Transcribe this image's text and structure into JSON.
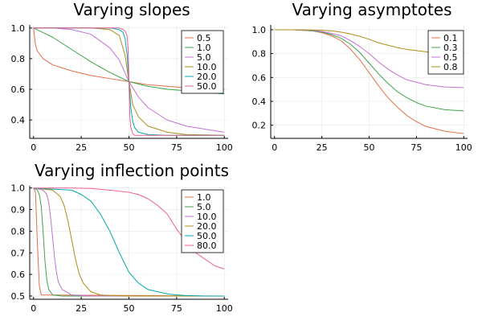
{
  "chart_data": [
    {
      "type": "line",
      "title": "Varying slopes",
      "xlabel": "",
      "ylabel": "",
      "xlim": [
        -2,
        102
      ],
      "ylim": [
        0.28,
        1.02
      ],
      "xticks": [
        0,
        25,
        50,
        75,
        100
      ],
      "yticks": [
        0.4,
        0.6,
        0.8,
        1.0
      ],
      "xtick_labels": [
        "0",
        "25",
        "50",
        "75",
        "100"
      ],
      "ytick_labels": [
        "0.4",
        "0.6",
        "0.8",
        "1.0"
      ],
      "grid": true,
      "legend_position": "top-right",
      "series": [
        {
          "name": "0.5",
          "color": "#e26f46",
          "x": [
            0,
            1,
            2,
            5,
            10,
            20,
            30,
            40,
            50,
            60,
            70,
            80,
            90,
            100
          ],
          "y": [
            1.0,
            0.89,
            0.85,
            0.8,
            0.76,
            0.72,
            0.69,
            0.67,
            0.65,
            0.63,
            0.62,
            0.61,
            0.6,
            0.6
          ]
        },
        {
          "name": "1.0",
          "color": "#3da44d",
          "x": [
            0,
            5,
            10,
            20,
            30,
            40,
            50,
            60,
            70,
            80,
            90,
            95,
            100
          ],
          "y": [
            1.0,
            0.97,
            0.94,
            0.86,
            0.78,
            0.71,
            0.65,
            0.62,
            0.6,
            0.59,
            0.58,
            0.575,
            0.57
          ]
        },
        {
          "name": "5.0",
          "color": "#c271d2",
          "x": [
            0,
            10,
            20,
            30,
            40,
            45,
            50,
            55,
            60,
            70,
            80,
            90,
            100
          ],
          "y": [
            1.0,
            1.0,
            0.99,
            0.96,
            0.87,
            0.79,
            0.65,
            0.55,
            0.48,
            0.4,
            0.36,
            0.34,
            0.32
          ]
        },
        {
          "name": "10.0",
          "color": "#ac8d18",
          "x": [
            0,
            30,
            40,
            45,
            48,
            50,
            52,
            55,
            60,
            70,
            80,
            100
          ],
          "y": [
            1.0,
            1.0,
            0.99,
            0.95,
            0.82,
            0.65,
            0.5,
            0.42,
            0.36,
            0.32,
            0.305,
            0.3
          ]
        },
        {
          "name": "20.0",
          "color": "#00a9ad",
          "x": [
            0,
            40,
            45,
            47,
            48,
            49,
            50,
            51,
            52,
            53,
            55,
            60,
            70,
            100
          ],
          "y": [
            1.0,
            1.0,
            0.99,
            0.97,
            0.93,
            0.83,
            0.65,
            0.48,
            0.39,
            0.35,
            0.32,
            0.305,
            0.3,
            0.3
          ]
        },
        {
          "name": "50.0",
          "color": "#ed5e93",
          "x": [
            0,
            45,
            47,
            48,
            49,
            49.5,
            50,
            50.5,
            51,
            52,
            53,
            100
          ],
          "y": [
            1.0,
            1.0,
            0.99,
            0.98,
            0.95,
            0.88,
            0.65,
            0.42,
            0.35,
            0.31,
            0.3,
            0.3
          ]
        }
      ]
    },
    {
      "type": "line",
      "title": "Varying asymptotes",
      "xlabel": "",
      "ylabel": "",
      "xlim": [
        -2,
        102
      ],
      "ylim": [
        0.09,
        1.04
      ],
      "xticks": [
        0,
        25,
        50,
        75,
        100
      ],
      "yticks": [
        0.2,
        0.4,
        0.6,
        0.8,
        1.0
      ],
      "xtick_labels": [
        "0",
        "25",
        "50",
        "75",
        "100"
      ],
      "ytick_labels": [
        "0.2",
        "0.4",
        "0.6",
        "0.8",
        "1.0"
      ],
      "grid": true,
      "legend_position": "top-right",
      "series": [
        {
          "name": "0.1",
          "color": "#e26f46",
          "x": [
            0,
            10,
            20,
            25,
            30,
            35,
            40,
            45,
            50,
            55,
            60,
            65,
            70,
            75,
            80,
            90,
            100
          ],
          "y": [
            1.0,
            1.0,
            0.99,
            0.975,
            0.95,
            0.91,
            0.84,
            0.75,
            0.64,
            0.53,
            0.43,
            0.35,
            0.28,
            0.23,
            0.19,
            0.15,
            0.13
          ]
        },
        {
          "name": "0.3",
          "color": "#3da44d",
          "x": [
            0,
            10,
            20,
            25,
            30,
            35,
            40,
            45,
            50,
            55,
            60,
            65,
            70,
            75,
            80,
            90,
            100
          ],
          "y": [
            1.0,
            1.0,
            0.99,
            0.98,
            0.96,
            0.93,
            0.88,
            0.81,
            0.72,
            0.63,
            0.55,
            0.48,
            0.43,
            0.39,
            0.36,
            0.33,
            0.32
          ]
        },
        {
          "name": "0.5",
          "color": "#c271d2",
          "x": [
            0,
            10,
            20,
            25,
            30,
            35,
            40,
            45,
            50,
            55,
            60,
            65,
            70,
            75,
            80,
            90,
            100
          ],
          "y": [
            1.0,
            1.0,
            0.995,
            0.985,
            0.97,
            0.95,
            0.91,
            0.86,
            0.8,
            0.73,
            0.67,
            0.62,
            0.58,
            0.56,
            0.54,
            0.52,
            0.515
          ]
        },
        {
          "name": "0.8",
          "color": "#ac8d18",
          "x": [
            0,
            10,
            20,
            25,
            30,
            35,
            40,
            45,
            50,
            55,
            60,
            65,
            70,
            75,
            80,
            90,
            100
          ],
          "y": [
            1.0,
            1.0,
            0.998,
            0.995,
            0.99,
            0.98,
            0.965,
            0.945,
            0.92,
            0.89,
            0.87,
            0.85,
            0.835,
            0.825,
            0.815,
            0.805,
            0.8
          ]
        }
      ]
    },
    {
      "type": "line",
      "title": "Varying inflection points",
      "xlabel": "",
      "ylabel": "",
      "xlim": [
        -2,
        102
      ],
      "ylim": [
        0.485,
        1.01
      ],
      "xticks": [
        0,
        25,
        50,
        75,
        100
      ],
      "yticks": [
        0.5,
        0.6,
        0.7,
        0.8,
        0.9,
        1.0
      ],
      "xtick_labels": [
        "0",
        "25",
        "50",
        "75",
        "100"
      ],
      "ytick_labels": [
        "0.5",
        "0.6",
        "0.7",
        "0.8",
        "0.9",
        "1.0"
      ],
      "grid": true,
      "legend_position": "top-right",
      "series": [
        {
          "name": "1.0",
          "color": "#e26f46",
          "x": [
            0,
            1,
            2,
            3,
            4,
            100
          ],
          "y": [
            1.0,
            0.98,
            0.75,
            0.55,
            0.505,
            0.5
          ]
        },
        {
          "name": "5.0",
          "color": "#3da44d",
          "x": [
            0,
            2,
            3,
            4,
            5,
            6,
            7,
            8,
            10,
            15,
            100
          ],
          "y": [
            1.0,
            0.99,
            0.97,
            0.92,
            0.8,
            0.66,
            0.57,
            0.53,
            0.505,
            0.5,
            0.5
          ]
        },
        {
          "name": "10.0",
          "color": "#c271d2",
          "x": [
            0,
            5,
            7,
            8,
            9,
            10,
            11,
            12,
            13,
            15,
            20,
            30,
            100
          ],
          "y": [
            1.0,
            0.99,
            0.97,
            0.93,
            0.86,
            0.77,
            0.68,
            0.61,
            0.565,
            0.53,
            0.505,
            0.5,
            0.5
          ]
        },
        {
          "name": "20.0",
          "color": "#ac8d18",
          "x": [
            0,
            10,
            14,
            16,
            18,
            20,
            22,
            24,
            26,
            30,
            35,
            40,
            50,
            60,
            100
          ],
          "y": [
            1.0,
            0.99,
            0.96,
            0.92,
            0.85,
            0.76,
            0.67,
            0.6,
            0.56,
            0.52,
            0.505,
            0.502,
            0.5,
            0.5,
            0.5
          ]
        },
        {
          "name": "50.0",
          "color": "#00a9ad",
          "x": [
            0,
            20,
            25,
            30,
            35,
            40,
            45,
            50,
            55,
            60,
            65,
            70,
            75,
            80,
            90,
            100
          ],
          "y": [
            1.0,
            0.99,
            0.97,
            0.94,
            0.88,
            0.8,
            0.7,
            0.61,
            0.56,
            0.53,
            0.52,
            0.51,
            0.505,
            0.502,
            0.5,
            0.5
          ]
        },
        {
          "name": "80.0",
          "color": "#ed5e93",
          "x": [
            0,
            20,
            30,
            40,
            50,
            55,
            60,
            65,
            70,
            75,
            80,
            85,
            90,
            95,
            100
          ],
          "y": [
            1.0,
            1.0,
            0.998,
            0.99,
            0.98,
            0.97,
            0.95,
            0.92,
            0.88,
            0.81,
            0.75,
            0.7,
            0.67,
            0.64,
            0.625
          ]
        }
      ]
    }
  ]
}
